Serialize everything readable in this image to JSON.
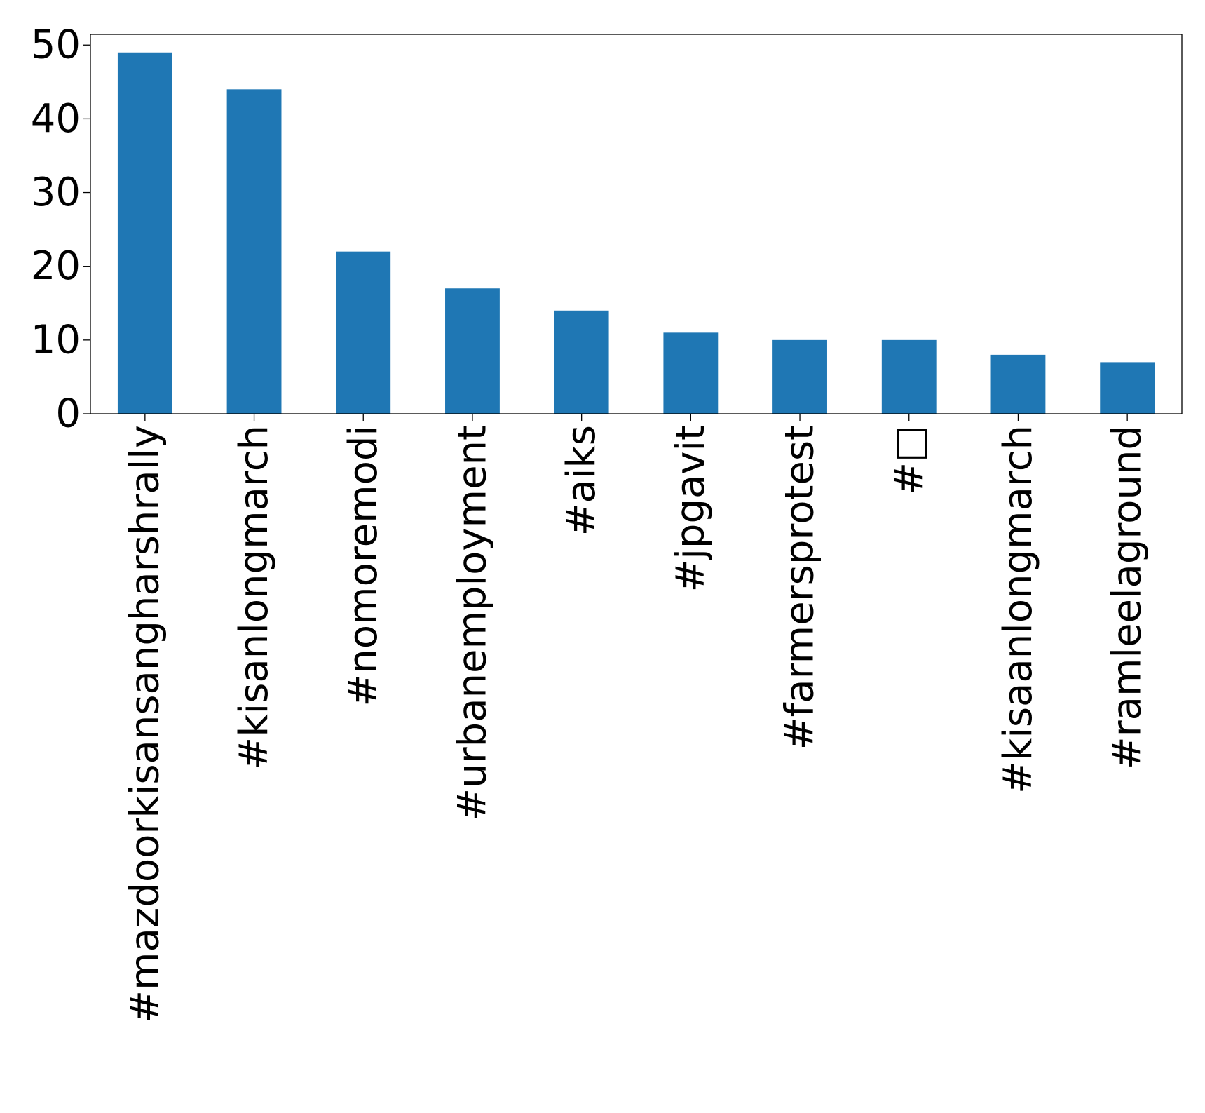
{
  "chart_data": {
    "type": "bar",
    "categories": [
      "#mazdoorkisansangharshrally",
      "#kisanlongmarch",
      "#nomoremodi",
      "#urbanemployment",
      "#aiks",
      "#jpgavit",
      "#farmersprotest",
      "#□",
      "#kisaanlongmarch",
      "#ramleelaground"
    ],
    "values": [
      49,
      44,
      22,
      17,
      14,
      11,
      10,
      10,
      8,
      7
    ],
    "title": "",
    "xlabel": "",
    "ylabel": "",
    "ylim": [
      0,
      51.45
    ],
    "yticks": [
      0,
      10,
      20,
      30,
      40,
      50
    ],
    "bar_color": "#1f77b4",
    "grid": false,
    "legend": "none"
  }
}
